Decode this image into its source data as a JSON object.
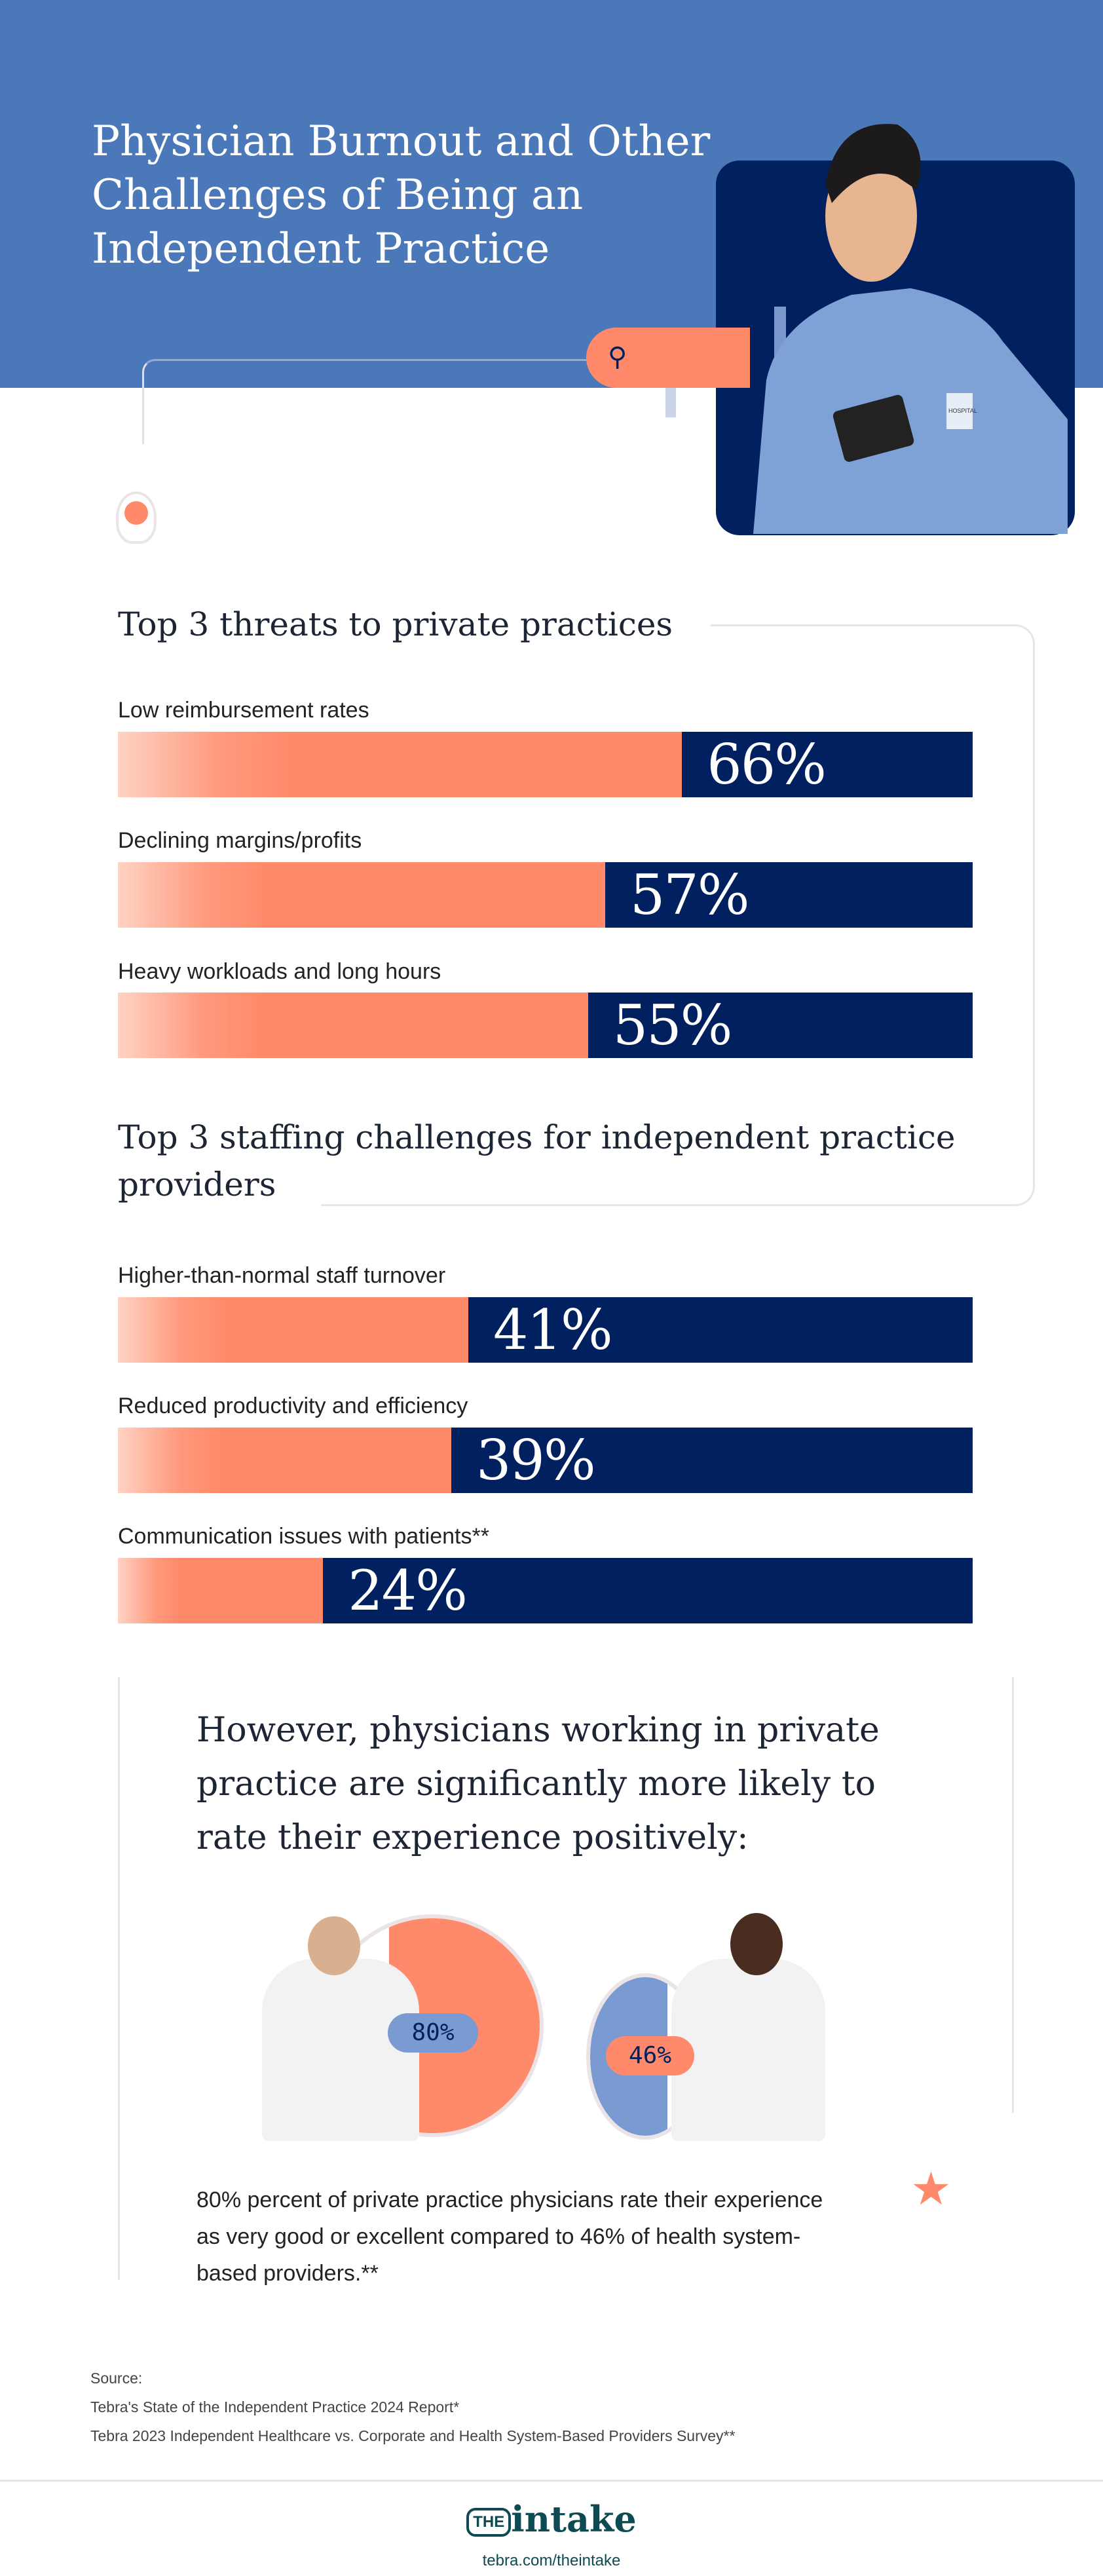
{
  "header": {
    "title": "Physician Burnout and Other Challenges of Being an Independent Practice",
    "badge": "HOSPITAL"
  },
  "colors": {
    "hero": "#4a78b9",
    "navy": "#00205f",
    "coral": "#ff8a6b",
    "teal": "#0e4a52"
  },
  "threats": {
    "heading": "Top 3 threats to private practices",
    "items": [
      {
        "label": "Low reimbursement rates",
        "value": 66,
        "display": "66%"
      },
      {
        "label": "Declining margins/profits",
        "value": 57,
        "display": "57%"
      },
      {
        "label": "Heavy workloads and long hours",
        "value": 55,
        "display": "55%"
      }
    ]
  },
  "staffing": {
    "heading": "Top 3 staffing challenges for independent practice providers",
    "items": [
      {
        "label": "Higher-than-normal staff turnover",
        "value": 41,
        "display": "41%"
      },
      {
        "label": "Reduced productivity and efficiency",
        "value": 39,
        "display": "39%"
      },
      {
        "label": "Communication issues with patients**",
        "value": 24,
        "display": "24%"
      }
    ]
  },
  "rating": {
    "quote": "However, physicians working in private practice are significantly more likely to rate their experience positively:",
    "private": {
      "value": 80,
      "display": "80%"
    },
    "health_system": {
      "value": 46,
      "display": "46%"
    },
    "caption": "80% percent of private practice physicians rate their experience as very good or excellent compared to 46% of health system-based providers.**"
  },
  "sources": {
    "label": "Source:",
    "items": [
      "Tebra's State of the Independent Practice 2024 Report*",
      "Tebra 2023 Independent Healthcare vs. Corporate and Health System-Based Providers Survey**"
    ]
  },
  "footer": {
    "logo_the": "THE",
    "logo_word": "intake",
    "url": "tebra.com/theintake"
  }
}
